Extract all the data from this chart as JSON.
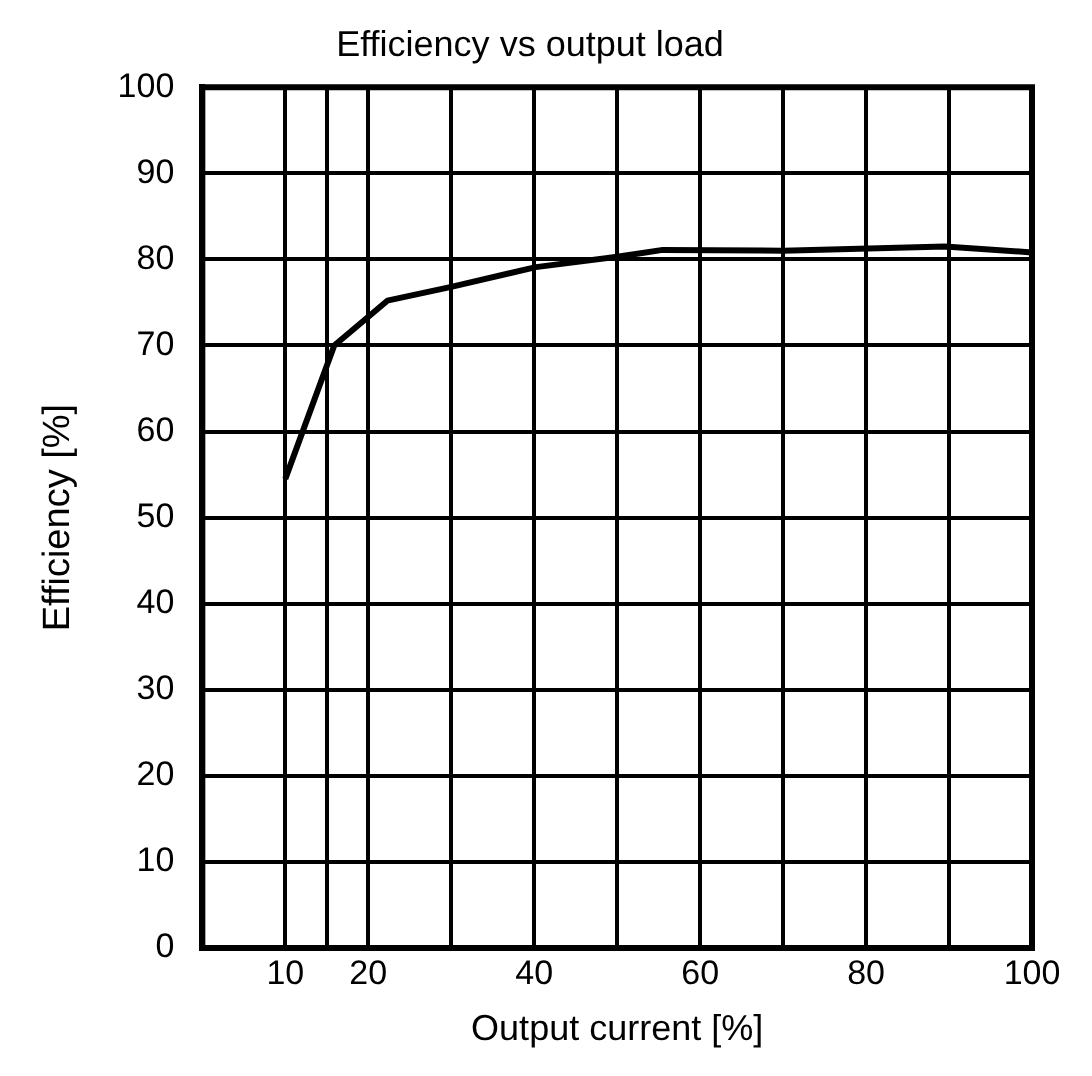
{
  "chart_data": {
    "type": "line",
    "title": "Efficiency vs output load",
    "xlabel": "Output current [%]",
    "ylabel": "Efficiency [%]",
    "x": [
      10,
      15.9,
      22.3,
      30,
      40.2,
      50,
      55.5,
      70,
      89.5,
      100
    ],
    "series": [
      {
        "color": "#000000",
        "values": [
          54.5,
          70,
          75.2,
          76.8,
          79.1,
          80.3,
          81.1,
          81,
          81.5,
          80.8
        ]
      }
    ],
    "xlim": [
      0,
      100
    ],
    "xticks": [
      10,
      {
        "value": 15,
        "label": null
      },
      20,
      {
        "value": 30,
        "label": null
      },
      40,
      {
        "value": 50,
        "label": null
      },
      60,
      {
        "value": 70,
        "label": null
      },
      80,
      {
        "value": 90,
        "label": null
      },
      100
    ],
    "ylim": [
      0,
      100
    ],
    "yticks": [
      0,
      10,
      20,
      30,
      40,
      50,
      60,
      70,
      80,
      90,
      100
    ],
    "grid": true,
    "legend": false,
    "marker": "none",
    "line_style": "solid"
  }
}
